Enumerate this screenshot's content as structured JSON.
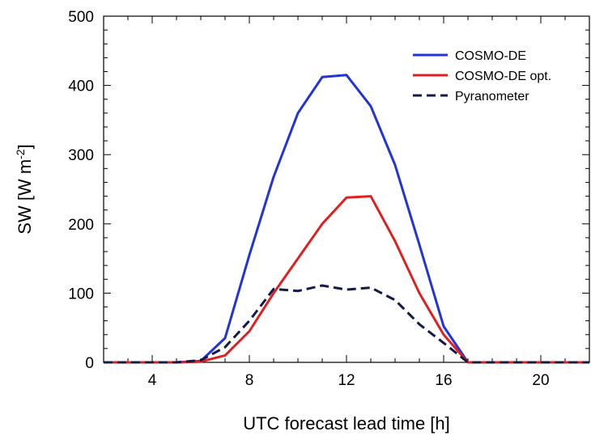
{
  "chart_data": {
    "type": "line",
    "title": "",
    "xlabel": "UTC forecast lead time [h]",
    "ylabel": {
      "prefix": "SW [W m",
      "superscript": "-2",
      "suffix": "]"
    },
    "xlim": [
      2,
      22
    ],
    "ylim": [
      0,
      500
    ],
    "x_ticks": [
      4,
      8,
      12,
      16,
      20
    ],
    "y_ticks": [
      0,
      100,
      200,
      300,
      400,
      500
    ],
    "x_tick_labels": [
      "4",
      "8",
      "12",
      "16",
      "20"
    ],
    "y_tick_labels": [
      "0",
      "100",
      "200",
      "300",
      "400",
      "500"
    ],
    "grid": false,
    "legend": {
      "placement": "top-right"
    },
    "x": [
      2,
      3,
      4,
      5,
      6,
      7,
      8,
      9,
      10,
      11,
      12,
      13,
      14,
      15,
      16,
      17,
      18,
      19,
      20,
      21,
      22
    ],
    "series": [
      {
        "name": "COSMO-DE",
        "color": "#2233dd",
        "dash": "solid",
        "values": [
          0,
          0,
          0,
          0,
          2,
          35,
          155,
          268,
          360,
          412,
          415,
          370,
          285,
          170,
          52,
          0,
          0,
          0,
          0,
          0,
          0
        ]
      },
      {
        "name": "COSMO-DE opt.",
        "color": "#e02020",
        "dash": "solid",
        "values": [
          0,
          0,
          0,
          0,
          1,
          10,
          45,
          100,
          150,
          200,
          238,
          240,
          175,
          100,
          40,
          0,
          0,
          0,
          0,
          0,
          0
        ]
      },
      {
        "name": "Pyranometer",
        "color": "#121a4a",
        "dash": "dashed",
        "values": [
          0,
          0,
          0,
          0,
          3,
          22,
          60,
          106,
          103,
          111,
          105,
          108,
          90,
          55,
          28,
          0,
          0,
          0,
          0,
          0,
          0
        ]
      }
    ]
  }
}
